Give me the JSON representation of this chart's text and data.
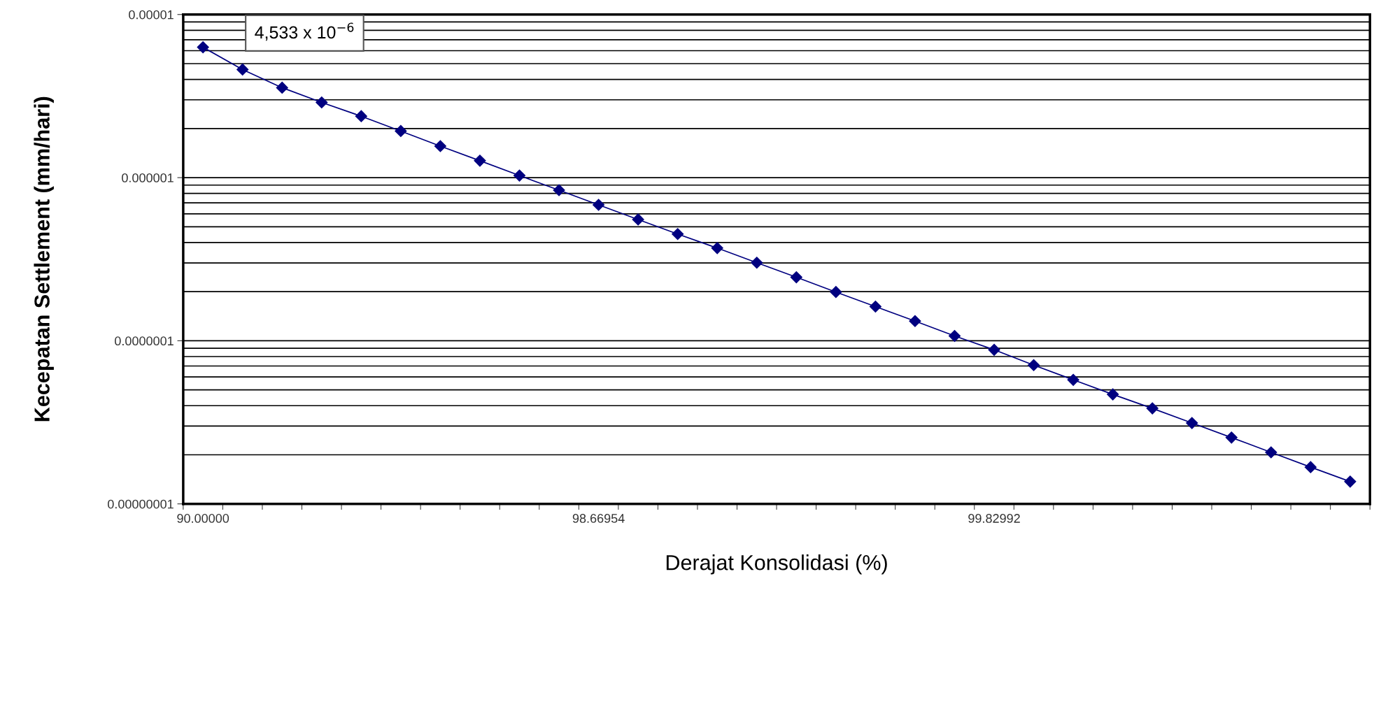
{
  "chart_data": {
    "type": "line",
    "xlabel": "Derajat Konsolidasi (%)",
    "ylabel": "Kecepatan Settlement (mm/hari)",
    "categories": [
      "90.00000",
      null,
      null,
      null,
      null,
      null,
      null,
      null,
      null,
      null,
      "98.66954",
      null,
      null,
      null,
      null,
      null,
      null,
      null,
      null,
      null,
      "99.82992",
      null,
      null,
      null,
      null,
      null,
      null,
      null,
      null,
      null
    ],
    "series": [
      {
        "color": "#000080",
        "values": [
          6.3e-06,
          4.6e-06,
          3.56e-06,
          2.89e-06,
          2.38e-06,
          1.93e-06,
          1.56e-06,
          1.27e-06,
          1.03e-06,
          8.38e-07,
          6.81e-07,
          5.54e-07,
          4.51e-07,
          3.7e-07,
          3.01e-07,
          2.45e-07,
          1.99e-07,
          1.62e-07,
          1.32e-07,
          1.07e-07,
          8.8e-08,
          7.09e-08,
          5.76e-08,
          4.69e-08,
          3.85e-08,
          3.13e-08,
          2.55e-08,
          2.07e-08,
          1.68e-08,
          1.37e-08
        ]
      }
    ],
    "log": "y",
    "ylim": [
      1e-08,
      1e-05
    ],
    "yticks": [
      {
        "value": 1e-08,
        "label": "0.00000001"
      },
      {
        "value": 2e-08,
        "label": null
      },
      {
        "value": 3e-08,
        "label": null
      },
      {
        "value": 4e-08,
        "label": null
      },
      {
        "value": 5e-08,
        "label": null
      },
      {
        "value": 6e-08,
        "label": null
      },
      {
        "value": 7e-08,
        "label": null
      },
      {
        "value": 8e-08,
        "label": null
      },
      {
        "value": 9e-08,
        "label": null
      },
      {
        "value": 1e-07,
        "label": "0.0000001"
      },
      {
        "value": 2e-07,
        "label": null
      },
      {
        "value": 3e-07,
        "label": null
      },
      {
        "value": 4e-07,
        "label": null
      },
      {
        "value": 5e-07,
        "label": null
      },
      {
        "value": 6e-07,
        "label": null
      },
      {
        "value": 7e-07,
        "label": null
      },
      {
        "value": 8e-07,
        "label": null
      },
      {
        "value": 9e-07,
        "label": null
      },
      {
        "value": 1e-06,
        "label": "0.000001"
      },
      {
        "value": 2e-06,
        "label": null
      },
      {
        "value": 3e-06,
        "label": null
      },
      {
        "value": 4e-06,
        "label": null
      },
      {
        "value": 5e-06,
        "label": null
      },
      {
        "value": 6e-06,
        "label": null
      },
      {
        "value": 7e-06,
        "label": null
      },
      {
        "value": 8e-06,
        "label": null
      },
      {
        "value": 9e-06,
        "label": null
      },
      {
        "value": 1e-05,
        "label": "0.00001"
      }
    ],
    "grid": "y",
    "marker": "diamond",
    "line_style": "solid",
    "legend": false,
    "annotations": [
      "4,533 x 10$^{−6}$"
    ]
  }
}
